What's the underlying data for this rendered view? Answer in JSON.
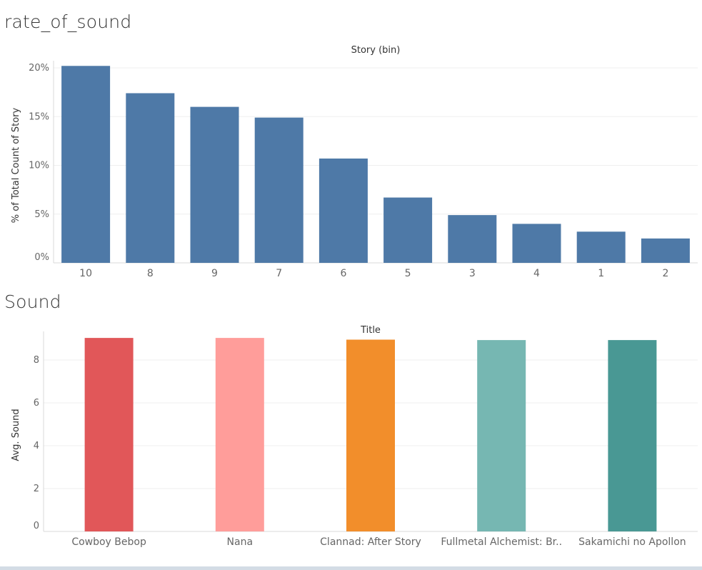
{
  "colors": {
    "bar_blue": "#4e79a7",
    "grid": "#efefef",
    "axis": "#d9d9d9",
    "text": "#666666"
  },
  "chart_data": [
    {
      "sheet_title": "rate_of_sound",
      "type": "bar",
      "header_title": "Story (bin)",
      "ylabel": "% of Total Count of Story",
      "categories": [
        "10",
        "8",
        "9",
        "7",
        "6",
        "5",
        "3",
        "4",
        "1",
        "2"
      ],
      "values": [
        20.2,
        17.4,
        16.0,
        14.9,
        10.7,
        6.7,
        4.9,
        4.0,
        3.2,
        2.5
      ],
      "ylim": [
        0,
        20
      ],
      "yticks": [
        0,
        5,
        10,
        15,
        20
      ],
      "ytick_labels": [
        "0%",
        "5%",
        "10%",
        "15%",
        "20%"
      ],
      "grid": true,
      "color": "#4e79a7"
    },
    {
      "sheet_title": "Sound",
      "type": "bar",
      "header_title": "Title",
      "ylabel": "Avg. Sound",
      "categories": [
        "Cowboy Bebop",
        "Nana",
        "Clannad: After Story",
        "Fullmetal Alchemist: Br..",
        "Sakamichi no Apollon"
      ],
      "values": [
        9.03,
        9.03,
        8.95,
        8.93,
        8.93
      ],
      "ylim": [
        0,
        9
      ],
      "yticks": [
        0,
        2,
        4,
        6,
        8
      ],
      "ytick_labels": [
        "0",
        "2",
        "4",
        "6",
        "8"
      ],
      "grid": true,
      "colors": [
        "#e15759",
        "#ff9d9a",
        "#f28e2b",
        "#76b7b2",
        "#499894"
      ]
    }
  ]
}
